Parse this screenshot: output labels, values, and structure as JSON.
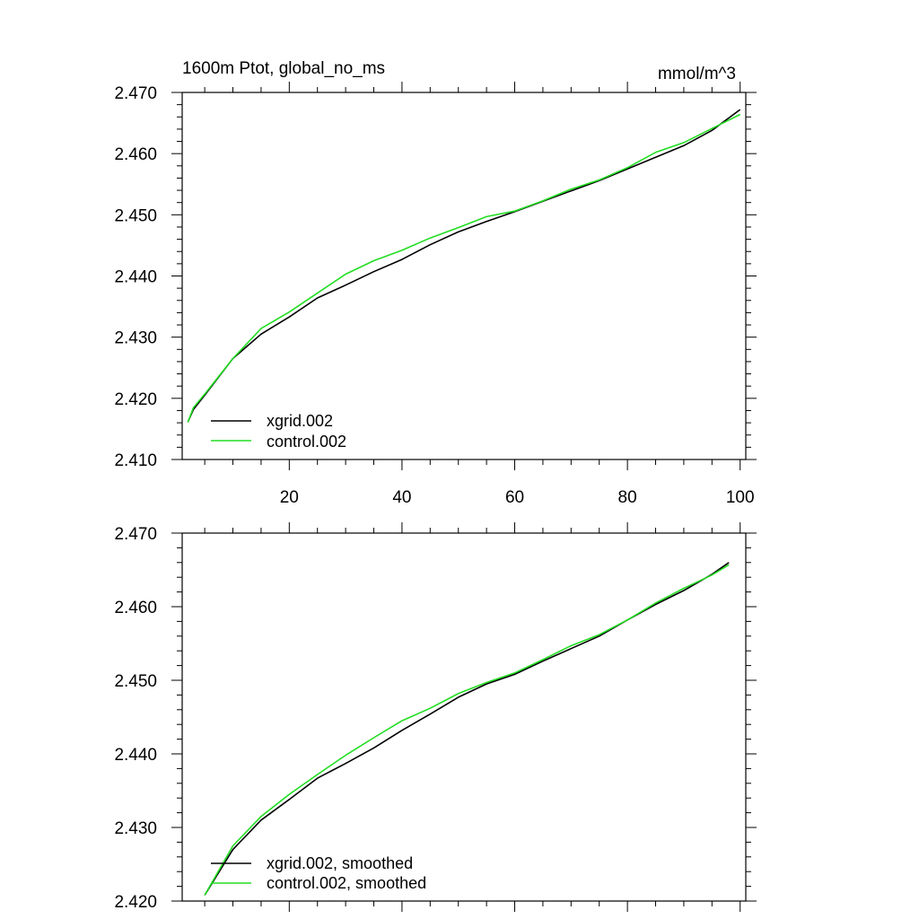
{
  "chart_data": [
    {
      "type": "line",
      "title": "1600m Ptot, global_no_ms",
      "units": "mmol/m^3",
      "xlim": [
        1,
        101
      ],
      "ylim": [
        2.41,
        2.47
      ],
      "x_ticks": [
        20,
        40,
        60,
        80,
        100
      ],
      "x_tick_labels": [
        "20",
        "40",
        "60",
        "80",
        "100"
      ],
      "y_ticks": [
        2.41,
        2.42,
        2.43,
        2.44,
        2.45,
        2.46,
        2.47
      ],
      "y_tick_labels": [
        "2.410",
        "2.420",
        "2.430",
        "2.440",
        "2.450",
        "2.460",
        "2.470"
      ],
      "legend_position": "bottom-left",
      "x": [
        2,
        3,
        5,
        10,
        15,
        20,
        25,
        30,
        35,
        40,
        45,
        50,
        55,
        60,
        65,
        70,
        75,
        80,
        85,
        90,
        95,
        100
      ],
      "series": [
        {
          "name": "xgrid.002",
          "color": "#000000",
          "values": [
            2.4161,
            2.4182,
            2.4205,
            2.4265,
            2.4305,
            2.4333,
            2.4364,
            2.4385,
            2.4407,
            2.4427,
            2.4451,
            2.4472,
            2.4489,
            2.4505,
            2.4522,
            2.4539,
            2.4556,
            2.4575,
            2.4594,
            2.4613,
            2.4638,
            2.4672
          ]
        },
        {
          "name": "control.002",
          "color": "#22dd22",
          "values": [
            2.4161,
            2.4185,
            2.4207,
            2.4265,
            2.4314,
            2.4341,
            2.4372,
            2.4403,
            2.4425,
            2.4442,
            2.4462,
            2.4479,
            2.4497,
            2.4506,
            2.4523,
            2.4542,
            2.4557,
            2.4577,
            2.4602,
            2.4618,
            2.4641,
            2.4664
          ]
        }
      ]
    },
    {
      "type": "line",
      "xlim": [
        1,
        101
      ],
      "ylim": [
        2.42,
        2.47
      ],
      "x_ticks": [
        20,
        40,
        60,
        80,
        100
      ],
      "y_ticks": [
        2.42,
        2.43,
        2.44,
        2.45,
        2.46,
        2.47
      ],
      "y_tick_labels": [
        "2.420",
        "2.430",
        "2.440",
        "2.450",
        "2.460",
        "2.470"
      ],
      "legend_position": "bottom-left",
      "x": [
        5,
        10,
        15,
        20,
        25,
        30,
        35,
        40,
        45,
        50,
        55,
        60,
        65,
        70,
        75,
        80,
        85,
        90,
        95,
        98
      ],
      "series": [
        {
          "name": "xgrid.002, smoothed",
          "color": "#000000",
          "values": [
            2.4208,
            2.427,
            2.431,
            2.4338,
            2.4367,
            2.4387,
            2.4408,
            2.4432,
            2.4454,
            2.4477,
            2.4495,
            2.4508,
            2.4526,
            2.4543,
            2.456,
            2.4582,
            2.4603,
            2.4622,
            2.4644,
            2.466
          ]
        },
        {
          "name": "control.002, smoothed",
          "color": "#22dd22",
          "values": [
            2.4208,
            2.4275,
            2.4315,
            2.4345,
            2.4372,
            2.4398,
            2.4422,
            2.4445,
            2.4462,
            2.4482,
            2.4497,
            2.451,
            2.4528,
            2.4547,
            2.4562,
            2.4582,
            2.4605,
            2.4625,
            2.4643,
            2.4657
          ]
        }
      ]
    }
  ]
}
